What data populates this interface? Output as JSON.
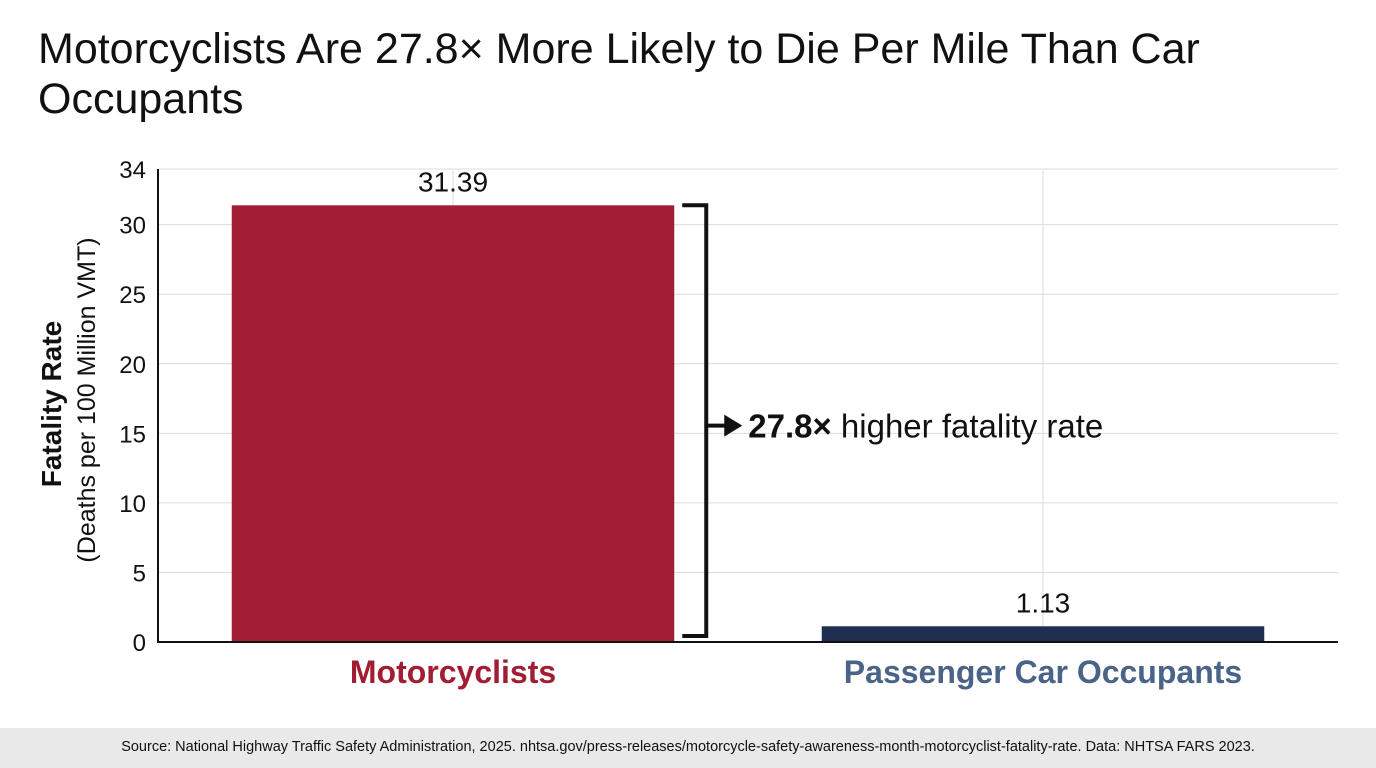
{
  "chart_data": {
    "type": "bar",
    "title": "Motorcyclists Are 27.8× More Likely to Die Per Mile Than Car Occupants",
    "categories": [
      "Motorcyclists",
      "Passenger Car Occupants"
    ],
    "values": [
      31.39,
      1.13
    ],
    "value_labels": [
      "31.39",
      "1.13"
    ],
    "bar_colors": [
      "#a11d33",
      "#1f2d4e"
    ],
    "category_label_colors": [
      "#a11d33",
      "#4a6388"
    ],
    "ylabel": "Fatality Rate",
    "ylabel_sub": "(Deaths per 100 Million VMT)",
    "xlabel": "",
    "ylim": [
      0,
      34
    ],
    "yticks": [
      0,
      5,
      10,
      15,
      20,
      25,
      30,
      34
    ],
    "grid": true,
    "annotation": {
      "bold": "27.8×",
      "text": " higher fatality rate"
    }
  },
  "source": "Source: National Highway Traffic Safety Administration, 2025. nhtsa.gov/press-releases/motorcycle-safety-awareness-month-motorcyclist-fatality-rate. Data: NHTSA FARS 2023."
}
